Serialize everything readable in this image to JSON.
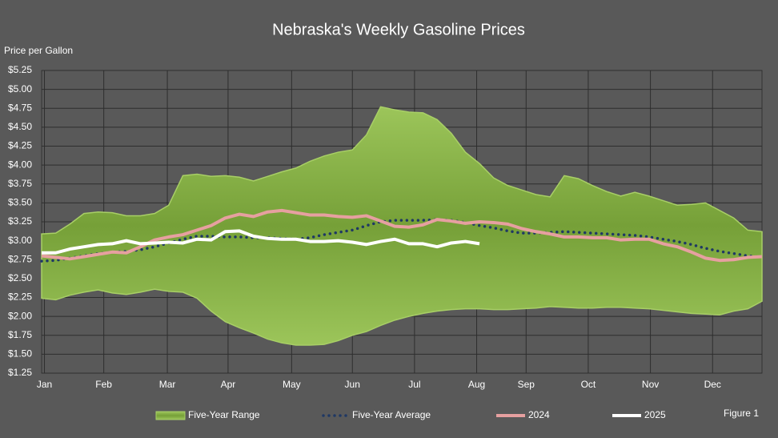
{
  "chart_data": {
    "type": "line",
    "title": "Nebraska's Weekly Gasoline Prices",
    "y_label": "Price per Gallon",
    "annotation": "Figure 1",
    "x": [
      1,
      2,
      3,
      4,
      5,
      6,
      7,
      8,
      9,
      10,
      11,
      12,
      13,
      14,
      15,
      16,
      17,
      18,
      19,
      20,
      21,
      22,
      23,
      24,
      25,
      26,
      27,
      28,
      29,
      30,
      31,
      32,
      33,
      34,
      35,
      36,
      37,
      38,
      39,
      40,
      41,
      42,
      43,
      44,
      45,
      46,
      47,
      48,
      49,
      50,
      51,
      52
    ],
    "xlim": [
      1,
      52
    ],
    "xticks": [
      {
        "value": 1.2,
        "label": "Jan"
      },
      {
        "value": 5.4,
        "label": "Feb"
      },
      {
        "value": 9.9,
        "label": "Mar"
      },
      {
        "value": 14.2,
        "label": "Apr"
      },
      {
        "value": 18.7,
        "label": "May"
      },
      {
        "value": 23,
        "label": "Jun"
      },
      {
        "value": 27.4,
        "label": "Jul"
      },
      {
        "value": 31.8,
        "label": "Aug"
      },
      {
        "value": 35.3,
        "label": "Sep"
      },
      {
        "value": 39.7,
        "label": "Oct"
      },
      {
        "value": 44.1,
        "label": "Nov"
      },
      {
        "value": 48.5,
        "label": "Dec"
      }
    ],
    "ylim": [
      1.25,
      5.25
    ],
    "yticks": [
      {
        "value": 1.25,
        "label": "$1.25"
      },
      {
        "value": 1.5,
        "label": "$1.50"
      },
      {
        "value": 1.75,
        "label": "$1.75"
      },
      {
        "value": 2,
        "label": "$2.00"
      },
      {
        "value": 2.25,
        "label": "$2.25"
      },
      {
        "value": 2.5,
        "label": "$2.50"
      },
      {
        "value": 2.75,
        "label": "$2.75"
      },
      {
        "value": 3,
        "label": "$3.00"
      },
      {
        "value": 3.25,
        "label": "$3.25"
      },
      {
        "value": 3.5,
        "label": "$3.50"
      },
      {
        "value": 3.75,
        "label": "$3.75"
      },
      {
        "value": 4,
        "label": "$4.00"
      },
      {
        "value": 4.25,
        "label": "$4.25"
      },
      {
        "value": 4.5,
        "label": "$4.50"
      },
      {
        "value": 4.75,
        "label": "$4.75"
      },
      {
        "value": 5,
        "label": "$5.00"
      },
      {
        "value": 5.25,
        "label": "$5.25"
      }
    ],
    "grid": true,
    "series": [
      {
        "name": "Five-Year Range",
        "style": "band",
        "color": "#7fa63c",
        "values": [
          3.09,
          3.1,
          3.22,
          3.36,
          3.38,
          3.37,
          3.33,
          3.33,
          3.36,
          3.47,
          3.86,
          3.88,
          3.85,
          3.86,
          3.84,
          3.79,
          3.85,
          3.91,
          3.96,
          4.05,
          4.12,
          4.17,
          4.2,
          4.4,
          4.77,
          4.73,
          4.7,
          4.69,
          4.6,
          4.42,
          4.17,
          4.02,
          3.83,
          3.73,
          3.67,
          3.61,
          3.58,
          3.86,
          3.82,
          3.73,
          3.65,
          3.59,
          3.64,
          3.59,
          3.53,
          3.47,
          3.48,
          3.5,
          3.4,
          3.3,
          3.14,
          3.12
        ],
        "low": [
          2.24,
          2.22,
          2.28,
          2.32,
          2.35,
          2.31,
          2.29,
          2.32,
          2.36,
          2.33,
          2.32,
          2.24,
          2.07,
          1.93,
          1.85,
          1.78,
          1.7,
          1.65,
          1.62,
          1.62,
          1.63,
          1.68,
          1.75,
          1.8,
          1.88,
          1.95,
          2.0,
          2.04,
          2.07,
          2.09,
          2.1,
          2.1,
          2.09,
          2.09,
          2.1,
          2.11,
          2.13,
          2.12,
          2.11,
          2.11,
          2.12,
          2.12,
          2.11,
          2.1,
          2.08,
          2.06,
          2.04,
          2.03,
          2.02,
          2.07,
          2.1,
          2.2
        ]
      },
      {
        "name": "Five-Year Average",
        "style": "dotted",
        "color": "#1f3864",
        "values": [
          2.73,
          2.74,
          2.77,
          2.8,
          2.83,
          2.85,
          2.86,
          2.88,
          2.92,
          2.97,
          3.02,
          3.06,
          3.06,
          3.05,
          3.05,
          3.04,
          3.04,
          3.03,
          3.02,
          3.04,
          3.08,
          3.11,
          3.14,
          3.2,
          3.25,
          3.27,
          3.27,
          3.27,
          3.28,
          3.27,
          3.24,
          3.2,
          3.17,
          3.13,
          3.1,
          3.1,
          3.11,
          3.12,
          3.11,
          3.1,
          3.09,
          3.08,
          3.07,
          3.05,
          3.02,
          2.99,
          2.95,
          2.9,
          2.86,
          2.83,
          2.8,
          2.78
        ]
      },
      {
        "name": "2024",
        "style": "solid",
        "color": "#e6a0a0",
        "values": [
          2.8,
          2.78,
          2.76,
          2.79,
          2.82,
          2.85,
          2.84,
          2.92,
          3.01,
          3.05,
          3.08,
          3.14,
          3.2,
          3.3,
          3.35,
          3.32,
          3.38,
          3.4,
          3.37,
          3.34,
          3.34,
          3.32,
          3.31,
          3.33,
          3.26,
          3.19,
          3.18,
          3.21,
          3.28,
          3.26,
          3.23,
          3.25,
          3.24,
          3.22,
          3.16,
          3.12,
          3.09,
          3.05,
          3.05,
          3.04,
          3.04,
          3.01,
          3.02,
          3.02,
          2.96,
          2.92,
          2.85,
          2.77,
          2.74,
          2.75,
          2.78,
          2.79
        ]
      },
      {
        "name": "2025",
        "style": "solid",
        "color": "#ffffff",
        "values": [
          2.84,
          2.84,
          2.89,
          2.92,
          2.95,
          2.96,
          3.0,
          2.96,
          2.97,
          2.98,
          2.97,
          3.02,
          3.01,
          3.12,
          3.13,
          3.06,
          3.03,
          3.02,
          3.02,
          2.99,
          2.99,
          3.0,
          2.98,
          2.95,
          2.99,
          3.02,
          2.96,
          2.96,
          2.92,
          2.97,
          2.99,
          2.96,
          null,
          null,
          null,
          null,
          null,
          null,
          null,
          null,
          null,
          null,
          null,
          null,
          null,
          null,
          null,
          null,
          null,
          null,
          null,
          null
        ]
      }
    ]
  }
}
